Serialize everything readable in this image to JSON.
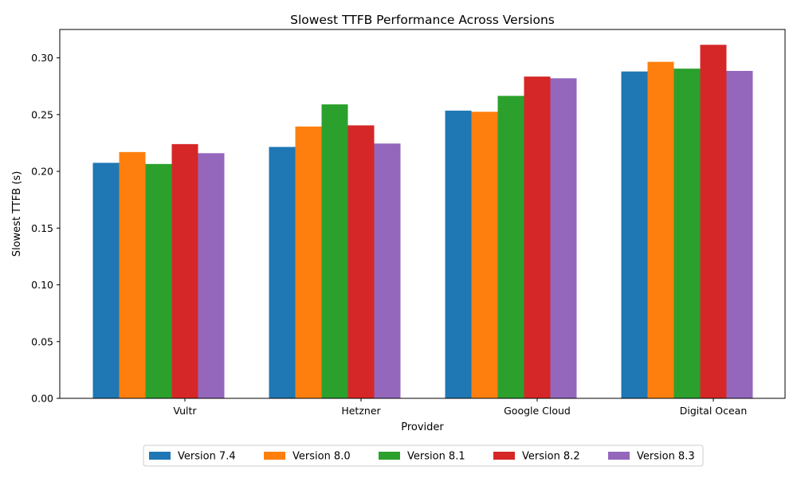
{
  "chart_data": {
    "type": "bar",
    "title": "Slowest TTFB Performance Across Versions",
    "xlabel": "Provider",
    "ylabel": "Slowest TTFB (s)",
    "ylim": [
      0,
      0.325
    ],
    "yticks": [
      "0.00",
      "0.05",
      "0.10",
      "0.15",
      "0.20",
      "0.25",
      "0.30"
    ],
    "categories": [
      "Vultr",
      "Hetzner",
      "Google Cloud",
      "Digital Ocean"
    ],
    "grid": false,
    "legend_position": "bottom-center",
    "series": [
      {
        "name": "Version 7.4",
        "color": "#1f77b4",
        "values": [
          0.2075,
          0.2215,
          0.2535,
          0.288
        ]
      },
      {
        "name": "Version 8.0",
        "color": "#ff7f0e",
        "values": [
          0.217,
          0.2395,
          0.2525,
          0.2965
        ]
      },
      {
        "name": "Version 8.1",
        "color": "#2ca02c",
        "values": [
          0.2065,
          0.259,
          0.2665,
          0.2905
        ]
      },
      {
        "name": "Version 8.2",
        "color": "#d62728",
        "values": [
          0.224,
          0.2405,
          0.2835,
          0.3115
        ]
      },
      {
        "name": "Version 8.3",
        "color": "#9467bd",
        "values": [
          0.216,
          0.2245,
          0.282,
          0.2885
        ]
      }
    ]
  }
}
